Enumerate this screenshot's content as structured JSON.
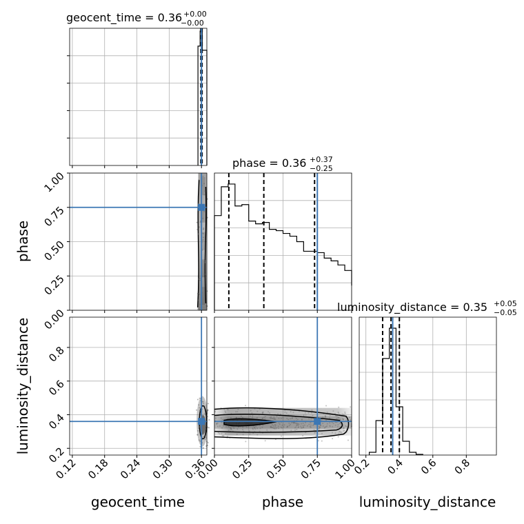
{
  "chart_data": {
    "type": "corner",
    "colors": {
      "truth": "#3c77b4",
      "hist": "#000000",
      "grid": "#b0b0b0"
    },
    "variables": [
      "geocent_time",
      "phase",
      "luminosity_distance"
    ],
    "titles": [
      {
        "label": "geocent_time = 0.36",
        "sup": "+0.00",
        "sub": "−0.00"
      },
      {
        "label": "phase = 0.36",
        "sup": "+0.37",
        "sub": "−0.25"
      },
      {
        "label": "luminosity_distance = 0.35",
        "sup": "+0.05",
        "sub": "−0.05"
      }
    ],
    "truth": {
      "geocent_time": 0.36,
      "phase": 0.75,
      "luminosity_distance": 0.36
    },
    "axes": {
      "geocent_time": {
        "range": [
          0.115,
          0.37
        ],
        "ticks": [
          0.12,
          0.18,
          0.24,
          0.3,
          0.36
        ],
        "tick_labels": [
          "0.12",
          "0.18",
          "0.24",
          "0.30",
          "0.36"
        ]
      },
      "phase": {
        "range": [
          0.0,
          1.0
        ],
        "ticks": [
          0.0,
          0.25,
          0.5,
          0.75,
          1.0
        ],
        "tick_labels": [
          "0.00",
          "0.25",
          "0.50",
          "0.75",
          "1.00"
        ]
      },
      "luminosity_distance": {
        "range": [
          0.16,
          0.98
        ],
        "ticks": [
          0.2,
          0.4,
          0.6,
          0.8
        ],
        "tick_labels": [
          "0.2",
          "0.4",
          "0.6",
          "0.8"
        ]
      }
    },
    "hist_geocent_time": {
      "bin_edges": [
        0.3535,
        0.3575,
        0.3615,
        0.3655,
        0.37
      ],
      "counts": [
        0.87,
        0.98,
        0.84,
        0.84
      ],
      "quantiles": [
        0.3588,
        0.36,
        0.3612
      ]
    },
    "hist_phase": {
      "bin_edges": [
        0.0,
        0.05,
        0.1,
        0.15,
        0.2,
        0.25,
        0.3,
        0.35,
        0.4,
        0.45,
        0.5,
        0.55,
        0.6,
        0.65,
        0.7,
        0.75,
        0.8,
        0.85,
        0.9,
        0.95,
        1.0
      ],
      "counts": [
        0.69,
        0.9,
        0.92,
        0.76,
        0.77,
        0.65,
        0.63,
        0.64,
        0.59,
        0.58,
        0.56,
        0.54,
        0.5,
        0.43,
        0.43,
        0.42,
        0.38,
        0.36,
        0.33,
        0.29,
        0.18
      ],
      "quantiles": [
        0.105,
        0.36,
        0.73
      ]
    },
    "hist_luminosity_distance": {
      "bin_edges": [
        0.22,
        0.26,
        0.3,
        0.34,
        0.38,
        0.42,
        0.46,
        0.5,
        0.54
      ],
      "counts": [
        0.02,
        0.25,
        0.7,
        0.92,
        0.35,
        0.1,
        0.02,
        0.005
      ],
      "quantiles": [
        0.3,
        0.35,
        0.4
      ]
    }
  }
}
